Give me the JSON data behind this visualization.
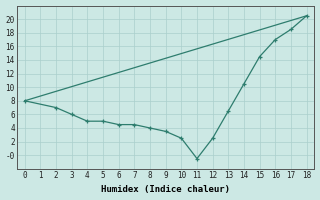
{
  "line1_x": [
    0,
    2,
    3,
    4,
    5,
    6,
    7,
    8,
    9,
    10,
    11,
    12,
    13,
    14,
    15,
    16,
    17,
    18
  ],
  "line1_y": [
    8,
    7,
    6,
    5,
    5,
    4.5,
    4.5,
    4,
    3.5,
    2.5,
    -0.5,
    2.5,
    6.5,
    10.5,
    14.5,
    17,
    18.5,
    20.5
  ],
  "line2_x": [
    0,
    18
  ],
  "line2_y": [
    8,
    20.5
  ],
  "line_color": "#2e7d6e",
  "bg_color": "#cce8e4",
  "grid_color": "#aacfcc",
  "xlabel": "Humidex (Indice chaleur)",
  "xlim": [
    -0.5,
    18.5
  ],
  "ylim": [
    -2,
    22
  ],
  "yticks": [
    0,
    2,
    4,
    6,
    8,
    10,
    12,
    14,
    16,
    18,
    20
  ],
  "xticks": [
    0,
    1,
    2,
    3,
    4,
    5,
    6,
    7,
    8,
    9,
    10,
    11,
    12,
    13,
    14,
    15,
    16,
    17,
    18
  ],
  "ytick_labels": [
    "-0",
    "2",
    "4",
    "6",
    "8",
    "10",
    "12",
    "14",
    "16",
    "18",
    "20"
  ]
}
